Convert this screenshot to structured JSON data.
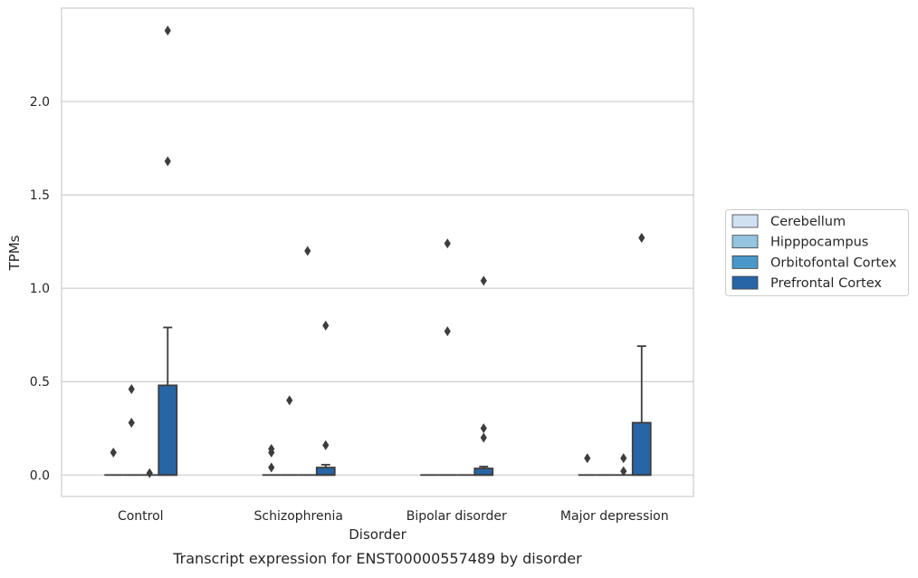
{
  "chart_data": {
    "type": "box",
    "title": "",
    "caption": "Transcript expression for ENST00000557489 by disorder",
    "xlabel": "Disorder",
    "ylabel": "TPMs",
    "categories": [
      "Control",
      "Schizophrenia",
      "Bipolar disorder",
      "Major depression"
    ],
    "ylim": [
      -0.115,
      2.5
    ],
    "yticks": [
      0.0,
      0.5,
      1.0,
      1.5,
      2.0
    ],
    "ytick_labels": [
      "0.0",
      "0.5",
      "1.0",
      "1.5",
      "2.0"
    ],
    "grid": "horizontal",
    "legend": {
      "placement": "right-outside",
      "entries": [
        "Cerebellum",
        "Hipppocampus",
        "Orbitofontal Cortex",
        "Prefrontal Cortex"
      ]
    },
    "series": [
      {
        "name": "Cerebellum",
        "color": "#d0e1f2",
        "boxes": [
          {
            "q1": 0,
            "median": 0,
            "q3": 0,
            "whisker_low": 0,
            "whisker_high": 0,
            "outliers": [
              0.12
            ]
          },
          {
            "q1": 0,
            "median": 0,
            "q3": 0,
            "whisker_low": 0,
            "whisker_high": 0,
            "outliers": [
              0.04,
              0.12,
              0.14
            ]
          },
          {
            "q1": 0,
            "median": 0,
            "q3": 0,
            "whisker_low": 0,
            "whisker_high": 0,
            "outliers": []
          },
          {
            "q1": 0,
            "median": 0,
            "q3": 0,
            "whisker_low": 0,
            "whisker_high": 0,
            "outliers": [
              0.09
            ]
          }
        ]
      },
      {
        "name": "Hipppocampus",
        "color": "#94c4df",
        "boxes": [
          {
            "q1": 0,
            "median": 0,
            "q3": 0,
            "whisker_low": 0,
            "whisker_high": 0,
            "outliers": [
              0.28,
              0.46
            ]
          },
          {
            "q1": 0,
            "median": 0,
            "q3": 0,
            "whisker_low": 0,
            "whisker_high": 0,
            "outliers": [
              0.4
            ]
          },
          {
            "q1": 0,
            "median": 0,
            "q3": 0,
            "whisker_low": 0,
            "whisker_high": 0,
            "outliers": [
              0.77,
              1.24
            ]
          },
          {
            "q1": 0,
            "median": 0,
            "q3": 0,
            "whisker_low": 0,
            "whisker_high": 0,
            "outliers": []
          }
        ]
      },
      {
        "name": "Orbitofontal Cortex",
        "color": "#4a98c9",
        "boxes": [
          {
            "q1": 0,
            "median": 0,
            "q3": 0,
            "whisker_low": 0,
            "whisker_high": 0,
            "outliers": [
              0.01
            ]
          },
          {
            "q1": 0,
            "median": 0,
            "q3": 0,
            "whisker_low": 0,
            "whisker_high": 0,
            "outliers": [
              1.2
            ]
          },
          {
            "q1": 0,
            "median": 0,
            "q3": 0,
            "whisker_low": 0,
            "whisker_high": 0,
            "outliers": []
          },
          {
            "q1": 0,
            "median": 0,
            "q3": 0,
            "whisker_low": 0,
            "whisker_high": 0,
            "outliers": [
              0.02,
              0.09
            ]
          }
        ]
      },
      {
        "name": "Prefrontal Cortex",
        "color": "#2765a6",
        "boxes": [
          {
            "q1": 0,
            "median": 0,
            "q3": 0.48,
            "whisker_low": 0,
            "whisker_high": 0.79,
            "outliers": [
              1.68,
              2.38
            ]
          },
          {
            "q1": 0,
            "median": 0,
            "q3": 0.04,
            "whisker_low": 0,
            "whisker_high": 0.055,
            "outliers": [
              0.16,
              0.8
            ]
          },
          {
            "q1": 0,
            "median": 0,
            "q3": 0.035,
            "whisker_low": 0,
            "whisker_high": 0.045,
            "outliers": [
              0.2,
              0.25,
              1.04
            ]
          },
          {
            "q1": 0,
            "median": 0,
            "q3": 0.28,
            "whisker_low": 0,
            "whisker_high": 0.69,
            "outliers": [
              1.27
            ]
          }
        ]
      }
    ]
  }
}
